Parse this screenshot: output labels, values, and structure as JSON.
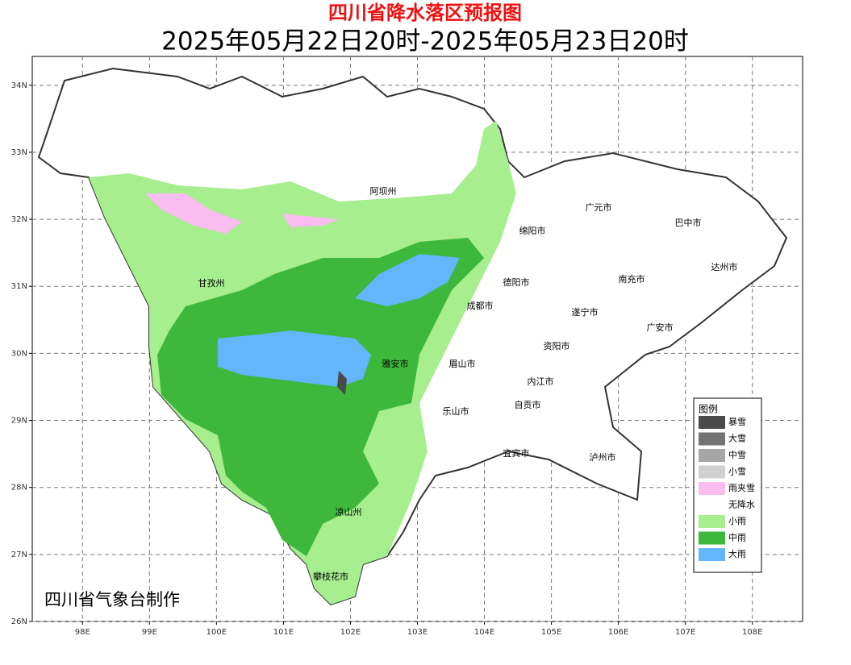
{
  "header": {
    "title": "四川省降水落区预报图",
    "subtitle": "2025年05月22日20时-2025年05月23日20时"
  },
  "map": {
    "xlim": [
      97.25,
      108.75
    ],
    "ylim": [
      26,
      34.43
    ],
    "xticks": [
      {
        "value": 98,
        "label": "98E"
      },
      {
        "value": 99,
        "label": "99E"
      },
      {
        "value": 100,
        "label": "100E"
      },
      {
        "value": 101,
        "label": "101E"
      },
      {
        "value": 102,
        "label": "102E"
      },
      {
        "value": 103,
        "label": "103E"
      },
      {
        "value": 104,
        "label": "104E"
      },
      {
        "value": 105,
        "label": "105E"
      },
      {
        "value": 106,
        "label": "106E"
      },
      {
        "value": 107,
        "label": "107E"
      },
      {
        "value": 108,
        "label": "108E"
      }
    ],
    "yticks": [
      {
        "value": 26,
        "label": "26N"
      },
      {
        "value": 27,
        "label": "27N"
      },
      {
        "value": 28,
        "label": "28N"
      },
      {
        "value": 29,
        "label": "29N"
      },
      {
        "value": 30,
        "label": "30N"
      },
      {
        "value": 31,
        "label": "31N"
      },
      {
        "value": 32,
        "label": "32N"
      },
      {
        "value": 33,
        "label": "33N"
      },
      {
        "value": 34,
        "label": "34N"
      }
    ],
    "grid": true,
    "cities": [
      "阿坝州",
      "广元市",
      "巴中市",
      "绵阳市",
      "甘孜州",
      "德阳市",
      "南充市",
      "达州市",
      "成都市",
      "遂宁市",
      "广安市",
      "资阳市",
      "雅安市",
      "眉山市",
      "内江市",
      "自贡市",
      "乐山市",
      "宜宾市",
      "泸州市",
      "凉山州",
      "攀枝花市"
    ],
    "credit": "四川省气象台制作"
  },
  "legend": {
    "title": "图例",
    "items": [
      {
        "name": "暴雪",
        "color": "#4a4a4a"
      },
      {
        "name": "大雪",
        "color": "#737373"
      },
      {
        "name": "中雪",
        "color": "#a6a6a6"
      },
      {
        "name": "小雪",
        "color": "#d0d0d0"
      },
      {
        "name": "雨夹雪",
        "color": "#f9bdf0"
      },
      {
        "name": "无降水",
        "color": "#ffffff"
      },
      {
        "name": "小雨",
        "color": "#a6ee8e"
      },
      {
        "name": "中雨",
        "color": "#3db83d"
      },
      {
        "name": "大雨",
        "color": "#63b6fb"
      }
    ]
  }
}
